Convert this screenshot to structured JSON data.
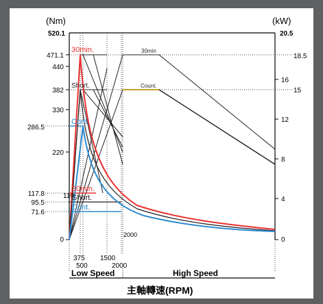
{
  "chart_data": {
    "type": "line",
    "title": "",
    "ylabel_left": "(Nm)",
    "ylabel_right": "(kW)",
    "xlabel": "主軸轉速(RPM)",
    "left_axis": {
      "ticks": [
        "0",
        "71.6",
        "95.5",
        "117.8",
        "220",
        "286.5",
        "330",
        "382",
        "440",
        "471.1",
        "520.1"
      ],
      "ylim": [
        0,
        520.1
      ]
    },
    "right_axis": {
      "ticks": [
        "0",
        "4",
        "8",
        "12",
        "15",
        "16",
        "18.5",
        "20.5"
      ],
      "ylim": [
        0,
        20.5
      ]
    },
    "x_ticks": [
      "375",
      "500",
      "1500",
      "2000"
    ],
    "x_inner_label": "2000",
    "regions": [
      "Low Speed",
      "High Speed"
    ],
    "torque_levels": [
      {
        "name": "30min.",
        "torque": 471.1,
        "low_speed_torque": 117.8,
        "color": "#e8312f"
      },
      {
        "name": "Short.",
        "torque": 382,
        "low_speed_torque": 95.5,
        "color": "#231f20"
      },
      {
        "name": "Cont.",
        "torque": 286.5,
        "low_speed_torque": 71.6,
        "color": "#2a8ad0"
      }
    ],
    "power_levels": [
      {
        "name": "30min",
        "power_kw": 18.5,
        "color": "#231f20"
      },
      {
        "name": "Count.",
        "power_kw": 15,
        "color": "#231f20"
      }
    ],
    "colors": {
      "frame": "#5f6062",
      "thirty_min": "#e8312f",
      "continuous": "#2a8ad0",
      "counter_segment": "#c9a227"
    }
  }
}
